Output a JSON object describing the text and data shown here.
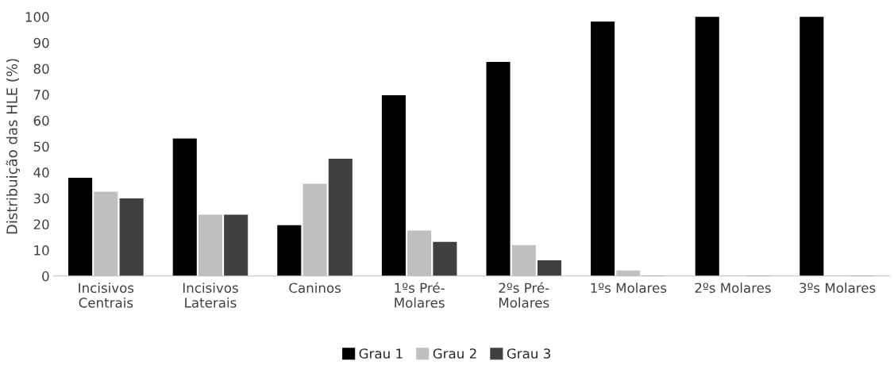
{
  "chart_data": {
    "type": "bar",
    "ylabel": "Distribuição das HLE (%)",
    "categories": [
      "Incisivos\nCentrais",
      "Incisivos\nLaterais",
      "Caninos",
      "1ºs Pré-\nMolares",
      "2ºs Pré-\nMolares",
      "1ºs Molares",
      "2ºs Molares",
      "3ºs Molares"
    ],
    "series": [
      {
        "name": "Grau 1",
        "color": "#000000",
        "values": [
          37.7,
          52.9,
          19.4,
          69.6,
          82.4,
          98.0,
          100,
          100
        ]
      },
      {
        "name": "Grau 2",
        "color": "#bfbfbf",
        "values": [
          32.4,
          23.5,
          35.4,
          17.4,
          11.8,
          2.0,
          0,
          0
        ]
      },
      {
        "name": "Grau 3",
        "color": "#404040",
        "values": [
          29.8,
          23.5,
          45.1,
          13.0,
          5.9,
          0,
          0,
          0
        ]
      }
    ],
    "ylim": [
      0,
      100
    ],
    "yticks": [
      0,
      10,
      20,
      30,
      40,
      50,
      60,
      70,
      80,
      90,
      100
    ],
    "grid": false,
    "legend": "bottom"
  }
}
